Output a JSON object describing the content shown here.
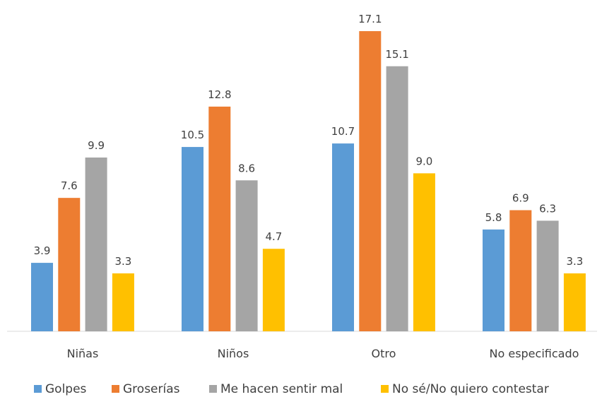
{
  "chart_data": {
    "type": "bar",
    "categories": [
      "Niñas",
      "Niños",
      "Otro",
      "No especificado"
    ],
    "series": [
      {
        "name": "Golpes",
        "values": [
          3.9,
          10.5,
          10.7,
          5.8
        ],
        "labels": [
          "3.9",
          "10.5",
          "10.7",
          "5.8"
        ],
        "color": "#5b9bd5"
      },
      {
        "name": "Groserías",
        "values": [
          7.6,
          12.8,
          17.1,
          6.9
        ],
        "labels": [
          "7.6",
          "12.8",
          "17.1",
          "6.9"
        ],
        "color": "#ed7d31"
      },
      {
        "name": "Me hacen sentir mal",
        "values": [
          9.9,
          8.6,
          15.1,
          6.3
        ],
        "labels": [
          "9.9",
          "8.6",
          "15.1",
          "6.3"
        ],
        "color": "#a5a5a5"
      },
      {
        "name": "No sé/No quiero contestar",
        "values": [
          3.3,
          4.7,
          9.0,
          3.3
        ],
        "labels": [
          "3.3",
          "4.7",
          "9.0",
          "3.3"
        ],
        "color": "#ffc000"
      }
    ],
    "ylim": [
      0,
      18
    ],
    "grid": false,
    "legend_position": "bottom",
    "axis_color": "#d9d9d9"
  }
}
